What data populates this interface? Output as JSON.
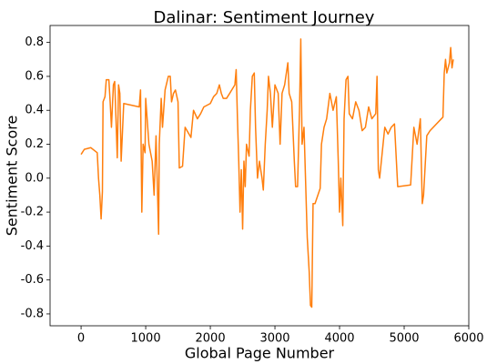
{
  "chart_data": {
    "type": "line",
    "title": "Dalinar: Sentiment Journey",
    "xlabel": "Global Page Number",
    "ylabel": "Sentiment Score",
    "xlim": [
      -480,
      6000
    ],
    "ylim": [
      -0.87,
      0.9
    ],
    "xticks": [
      0,
      1000,
      2000,
      3000,
      4000,
      5000,
      6000
    ],
    "yticks": [
      -0.8,
      -0.6,
      -0.4,
      -0.2,
      {
        "value": 0,
        "label": "0.0"
      },
      0.2,
      0.4,
      0.6,
      0.8
    ],
    "x": [
      0,
      50,
      150,
      250,
      270,
      290,
      310,
      330,
      340,
      370,
      390,
      430,
      450,
      470,
      500,
      520,
      540,
      560,
      580,
      600,
      620,
      660,
      900,
      920,
      940,
      960,
      990,
      1000,
      1050,
      1100,
      1130,
      1160,
      1200,
      1210,
      1240,
      1260,
      1300,
      1350,
      1380,
      1400,
      1430,
      1460,
      1500,
      1520,
      1570,
      1610,
      1640,
      1700,
      1740,
      1800,
      1850,
      1900,
      2000,
      2050,
      2100,
      2140,
      2170,
      2200,
      2250,
      2300,
      2380,
      2400,
      2420,
      2440,
      2460,
      2480,
      2500,
      2520,
      2540,
      2560,
      2600,
      2620,
      2650,
      2680,
      2700,
      2730,
      2760,
      2800,
      2820,
      2850,
      2880,
      2900,
      2930,
      2960,
      3000,
      3050,
      3080,
      3110,
      3150,
      3200,
      3220,
      3260,
      3300,
      3320,
      3350,
      3380,
      3400,
      3420,
      3450,
      3500,
      3530,
      3550,
      3570,
      3590,
      3620,
      3700,
      3720,
      3760,
      3800,
      3850,
      3900,
      3950,
      3980,
      4000,
      4020,
      4050,
      4070,
      4100,
      4130,
      4150,
      4200,
      4250,
      4300,
      4350,
      4400,
      4450,
      4500,
      4560,
      4580,
      4600,
      4620,
      4700,
      4750,
      4800,
      4850,
      4900,
      5100,
      5150,
      5200,
      5250,
      5280,
      5300,
      5350,
      5400,
      5600,
      5620,
      5640,
      5660,
      5700,
      5720,
      5740,
      5760
    ],
    "series": [
      {
        "name": "Dalinar",
        "color": "#ff7f0e",
        "values": [
          0.14,
          0.17,
          0.18,
          0.15,
          0.0,
          -0.1,
          -0.24,
          -0.08,
          0.45,
          0.48,
          0.58,
          0.58,
          0.45,
          0.3,
          0.55,
          0.57,
          0.35,
          0.12,
          0.55,
          0.5,
          0.1,
          0.44,
          0.42,
          0.52,
          -0.2,
          0.2,
          0.15,
          0.47,
          0.2,
          0.1,
          -0.1,
          0.25,
          -0.33,
          0.2,
          0.47,
          0.3,
          0.52,
          0.6,
          0.6,
          0.45,
          0.5,
          0.52,
          0.45,
          0.06,
          0.07,
          0.3,
          0.28,
          0.24,
          0.4,
          0.35,
          0.38,
          0.42,
          0.44,
          0.48,
          0.5,
          0.55,
          0.5,
          0.47,
          0.47,
          0.5,
          0.55,
          0.64,
          0.35,
          0.1,
          -0.2,
          0.05,
          -0.3,
          0.1,
          -0.05,
          0.2,
          0.13,
          0.4,
          0.6,
          0.62,
          0.3,
          0.0,
          0.1,
          0.0,
          -0.07,
          0.2,
          0.4,
          0.6,
          0.5,
          0.3,
          0.55,
          0.5,
          0.2,
          0.5,
          0.55,
          0.68,
          0.5,
          0.45,
          0.1,
          -0.05,
          -0.05,
          0.4,
          0.82,
          0.2,
          0.3,
          -0.35,
          -0.55,
          -0.75,
          -0.76,
          -0.15,
          -0.15,
          -0.06,
          0.2,
          0.3,
          0.35,
          0.5,
          0.4,
          0.48,
          0.1,
          -0.2,
          0.0,
          -0.28,
          0.35,
          0.58,
          0.6,
          0.38,
          0.35,
          0.45,
          0.4,
          0.28,
          0.3,
          0.42,
          0.35,
          0.38,
          0.6,
          0.05,
          0.0,
          0.3,
          0.26,
          0.3,
          0.32,
          -0.05,
          -0.04,
          0.3,
          0.2,
          0.35,
          -0.15,
          -0.1,
          0.25,
          0.28,
          0.36,
          0.62,
          0.7,
          0.62,
          0.68,
          0.77,
          0.65,
          0.7
        ]
      }
    ]
  }
}
